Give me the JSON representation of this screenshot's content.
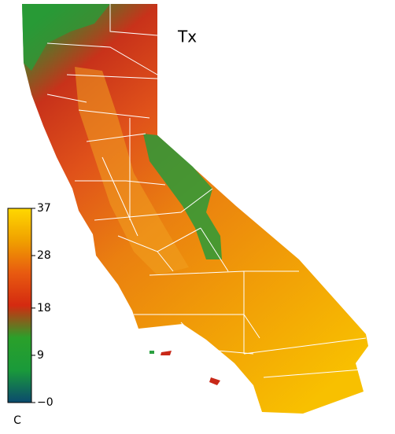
{
  "title": "Tx",
  "colorbar": {
    "unit": "C",
    "range": [
      0,
      37
    ],
    "ticks": [
      37,
      28,
      18,
      9,
      {
        "value": 0,
        "label": "−0"
      }
    ],
    "colormap": [
      "#0b4a6e",
      "#1a9a3a",
      "#2aa02a",
      "#d42a10",
      "#e85a10",
      "#f0a000",
      "#ffd800"
    ]
  }
}
